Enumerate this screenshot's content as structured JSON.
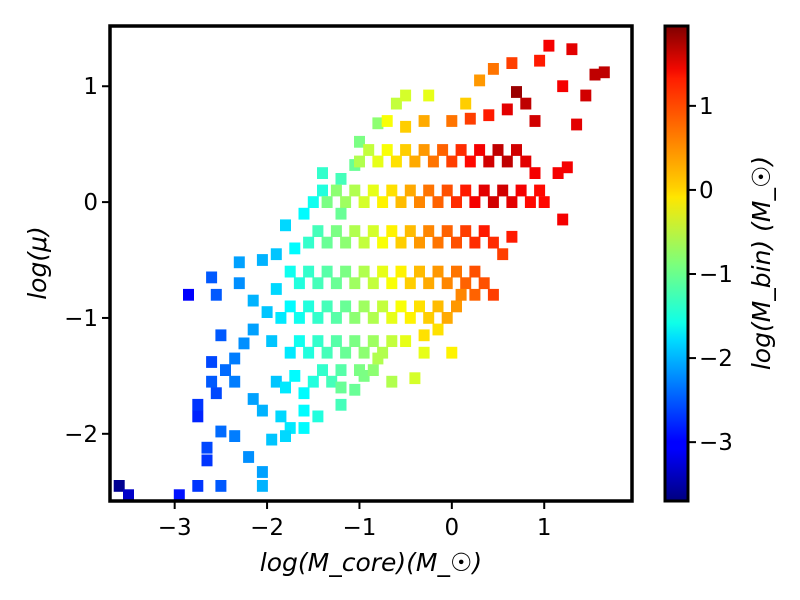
{
  "chart_data": {
    "type": "heatmap",
    "xlabel": "log(M_core)(M_☉)",
    "ylabel": "log(μ)",
    "colorbar_label": "log(M_bin) (M_☉)",
    "xlim": [
      -3.7,
      1.95
    ],
    "ylim": [
      -2.58,
      1.52
    ],
    "clim": [
      -3.7,
      1.95
    ],
    "xticks": [
      -3,
      -2,
      -1,
      0,
      1
    ],
    "yticks": [
      -2,
      -1,
      0,
      1
    ],
    "colorbar_ticks": [
      -3,
      -2,
      -1,
      0,
      1
    ],
    "colormap": "jet",
    "grid": false,
    "bin_width": 0.119,
    "bin_height": 0.102,
    "colorbar_tick_labels": [
      "−3",
      "−2",
      "−1",
      "0",
      "1"
    ],
    "xtick_labels": [
      "−3",
      "−2",
      "−1",
      "0",
      "1"
    ],
    "ytick_labels": [
      "−2",
      "−1",
      "0",
      "1"
    ],
    "bins": [
      [
        -3.6,
        -2.45,
        -3.6
      ],
      [
        -3.5,
        -2.53,
        -3.3
      ],
      [
        -2.95,
        -2.53,
        -2.9
      ],
      [
        -2.75,
        -2.45,
        -2.7
      ],
      [
        -2.5,
        -2.45,
        -2.5
      ],
      [
        -2.05,
        -2.45,
        -2.0
      ],
      [
        -2.05,
        -2.33,
        -2.1
      ],
      [
        -2.2,
        -2.2,
        -2.2
      ],
      [
        -2.65,
        -2.23,
        -2.7
      ],
      [
        -2.65,
        -2.12,
        -2.6
      ],
      [
        -2.5,
        -1.98,
        -2.4
      ],
      [
        -2.35,
        -2.02,
        -2.3
      ],
      [
        -2.75,
        -1.85,
        -2.8
      ],
      [
        -2.75,
        -1.75,
        -2.7
      ],
      [
        -2.55,
        -1.65,
        -2.6
      ],
      [
        -2.6,
        -1.55,
        -2.5
      ],
      [
        -2.45,
        -1.45,
        -2.4
      ],
      [
        -2.35,
        -1.55,
        -2.3
      ],
      [
        -2.35,
        -1.35,
        -2.3
      ],
      [
        -2.6,
        -1.38,
        -2.6
      ],
      [
        -2.5,
        -1.15,
        -2.5
      ],
      [
        -2.25,
        -1.22,
        -2.2
      ],
      [
        -2.15,
        -1.1,
        -2.1
      ],
      [
        -1.95,
        -1.2,
        -1.9
      ],
      [
        -2.15,
        -1.7,
        -2.1
      ],
      [
        -2.05,
        -1.8,
        -2.0
      ],
      [
        -1.85,
        -1.85,
        -1.8
      ],
      [
        -1.75,
        -1.95,
        -1.7
      ],
      [
        -1.95,
        -2.05,
        -1.9
      ],
      [
        -1.8,
        -2.02,
        -1.8
      ],
      [
        -1.6,
        -1.95,
        -1.6
      ],
      [
        -1.45,
        -1.85,
        -1.4
      ],
      [
        -1.2,
        -1.75,
        -1.2
      ],
      [
        -1.05,
        -1.62,
        -1.0
      ],
      [
        -0.95,
        -1.5,
        -0.9
      ],
      [
        -0.85,
        -1.45,
        -0.8
      ],
      [
        -0.65,
        -1.55,
        -0.6
      ],
      [
        -0.4,
        -1.52,
        -0.4
      ],
      [
        -0.3,
        -1.3,
        -0.3
      ],
      [
        0.0,
        -1.3,
        -0.1
      ],
      [
        -2.85,
        -0.8,
        -3.0
      ],
      [
        -2.55,
        -0.8,
        -2.5
      ],
      [
        -2.6,
        -0.65,
        -2.5
      ],
      [
        -2.3,
        -0.7,
        -2.2
      ],
      [
        -2.3,
        -0.52,
        -2.1
      ],
      [
        -2.05,
        -0.5,
        -2.0
      ],
      [
        -1.9,
        -0.45,
        -1.9
      ],
      [
        -1.8,
        -0.2,
        -1.8
      ],
      [
        -1.6,
        -0.1,
        -1.6
      ],
      [
        -1.5,
        0.0,
        -1.5
      ],
      [
        -1.4,
        0.1,
        -1.4
      ],
      [
        -1.2,
        0.2,
        -1.2
      ],
      [
        -1.05,
        0.32,
        -1.0
      ],
      [
        -1.0,
        0.52,
        -0.9
      ],
      [
        -0.8,
        0.68,
        -0.8
      ],
      [
        -0.6,
        0.85,
        -0.5
      ],
      [
        -0.5,
        0.92,
        -0.4
      ],
      [
        -0.25,
        0.92,
        -0.3
      ],
      [
        0.15,
        0.85,
        0.1
      ],
      [
        0.3,
        1.05,
        0.4
      ],
      [
        0.45,
        1.15,
        0.6
      ],
      [
        0.65,
        1.2,
        0.9
      ],
      [
        0.95,
        1.22,
        1.1
      ],
      [
        1.05,
        1.35,
        1.3
      ],
      [
        1.3,
        1.32,
        1.4
      ],
      [
        1.65,
        1.12,
        1.6
      ],
      [
        1.55,
        1.1,
        1.6
      ],
      [
        1.2,
        1.0,
        1.3
      ],
      [
        1.45,
        0.92,
        1.5
      ],
      [
        1.35,
        0.67,
        1.4
      ],
      [
        1.15,
        0.25,
        1.3
      ],
      [
        1.25,
        0.3,
        1.3
      ],
      [
        1.0,
        0.0,
        1.2
      ],
      [
        1.2,
        -0.15,
        1.3
      ],
      [
        -0.15,
        -1.1,
        0.0
      ],
      [
        -1.9,
        -1.55,
        -1.9
      ],
      [
        -1.8,
        -1.6,
        -1.7
      ],
      [
        -1.7,
        -1.5,
        -1.6
      ],
      [
        -1.6,
        -1.65,
        -1.6
      ],
      [
        -1.5,
        -1.55,
        -1.4
      ],
      [
        -1.4,
        -1.45,
        -1.3
      ],
      [
        -1.3,
        -1.55,
        -1.2
      ],
      [
        -1.2,
        -1.45,
        -1.1
      ],
      [
        -1.75,
        -1.3,
        -1.7
      ],
      [
        -1.65,
        -1.2,
        -1.5
      ],
      [
        -1.55,
        -1.3,
        -1.4
      ],
      [
        -1.45,
        -1.2,
        -1.3
      ],
      [
        -1.35,
        -1.3,
        -1.2
      ],
      [
        -1.25,
        -1.2,
        -1.1
      ],
      [
        -1.15,
        -1.3,
        -1.0
      ],
      [
        -1.05,
        -1.2,
        -0.9
      ],
      [
        -0.95,
        -1.3,
        -0.8
      ],
      [
        -0.85,
        -1.2,
        -0.7
      ],
      [
        -0.75,
        -1.3,
        -0.6
      ],
      [
        -0.65,
        -1.2,
        -0.5
      ],
      [
        -1.85,
        -1.0,
        -1.7
      ],
      [
        -1.75,
        -0.9,
        -1.6
      ],
      [
        -1.65,
        -1.0,
        -1.5
      ],
      [
        -1.55,
        -0.9,
        -1.4
      ],
      [
        -1.45,
        -1.0,
        -1.3
      ],
      [
        -1.35,
        -0.9,
        -1.2
      ],
      [
        -1.25,
        -1.0,
        -1.1
      ],
      [
        -1.15,
        -0.9,
        -1.0
      ],
      [
        -1.05,
        -1.0,
        -0.8
      ],
      [
        -0.95,
        -0.9,
        -0.7
      ],
      [
        -0.85,
        -1.0,
        -0.6
      ],
      [
        -0.75,
        -0.9,
        -0.5
      ],
      [
        -0.65,
        -1.0,
        -0.3
      ],
      [
        -0.55,
        -0.9,
        -0.2
      ],
      [
        -0.45,
        -1.0,
        -0.1
      ],
      [
        -0.35,
        -0.9,
        0.0
      ],
      [
        -0.25,
        -1.0,
        0.1
      ],
      [
        -0.15,
        -0.9,
        0.2
      ],
      [
        -0.05,
        -1.0,
        0.3
      ],
      [
        0.05,
        -0.9,
        0.4
      ],
      [
        -1.75,
        -0.6,
        -1.5
      ],
      [
        -1.65,
        -0.7,
        -1.4
      ],
      [
        -1.55,
        -0.6,
        -1.3
      ],
      [
        -1.45,
        -0.7,
        -1.2
      ],
      [
        -1.35,
        -0.6,
        -1.1
      ],
      [
        -1.25,
        -0.7,
        -1.0
      ],
      [
        -1.15,
        -0.6,
        -0.9
      ],
      [
        -1.05,
        -0.7,
        -0.7
      ],
      [
        -0.95,
        -0.6,
        -0.6
      ],
      [
        -0.85,
        -0.7,
        -0.5
      ],
      [
        -0.75,
        -0.6,
        -0.3
      ],
      [
        -0.65,
        -0.7,
        -0.2
      ],
      [
        -0.55,
        -0.6,
        -0.1
      ],
      [
        -0.45,
        -0.7,
        0.1
      ],
      [
        -0.35,
        -0.6,
        0.2
      ],
      [
        -0.25,
        -0.7,
        0.3
      ],
      [
        -0.15,
        -0.6,
        0.4
      ],
      [
        -0.05,
        -0.7,
        0.5
      ],
      [
        0.05,
        -0.6,
        0.6
      ],
      [
        0.15,
        -0.7,
        0.7
      ],
      [
        0.25,
        -0.6,
        0.8
      ],
      [
        0.35,
        -0.7,
        0.8
      ],
      [
        0.45,
        -0.8,
        0.9
      ],
      [
        -1.55,
        -0.35,
        -1.3
      ],
      [
        -1.45,
        -0.25,
        -1.2
      ],
      [
        -1.35,
        -0.35,
        -1.0
      ],
      [
        -1.25,
        -0.25,
        -0.9
      ],
      [
        -1.15,
        -0.35,
        -0.8
      ],
      [
        -1.05,
        -0.25,
        -0.6
      ],
      [
        -0.95,
        -0.35,
        -0.5
      ],
      [
        -0.85,
        -0.25,
        -0.4
      ],
      [
        -0.75,
        -0.35,
        -0.2
      ],
      [
        -0.65,
        -0.25,
        -0.1
      ],
      [
        -0.55,
        -0.35,
        0.1
      ],
      [
        -0.45,
        -0.25,
        0.2
      ],
      [
        -0.35,
        -0.35,
        0.4
      ],
      [
        -0.25,
        -0.25,
        0.5
      ],
      [
        -0.15,
        -0.35,
        0.6
      ],
      [
        -0.05,
        -0.25,
        0.7
      ],
      [
        0.05,
        -0.35,
        0.8
      ],
      [
        0.15,
        -0.25,
        0.9
      ],
      [
        0.25,
        -0.35,
        1.0
      ],
      [
        0.35,
        -0.25,
        1.1
      ],
      [
        0.45,
        -0.35,
        1.0
      ],
      [
        0.55,
        -0.45,
        0.9
      ],
      [
        0.65,
        -0.3,
        1.1
      ],
      [
        -1.35,
        0.0,
        -0.9
      ],
      [
        -1.25,
        0.1,
        -0.8
      ],
      [
        -1.15,
        0.0,
        -0.7
      ],
      [
        -1.05,
        0.1,
        -0.6
      ],
      [
        -0.95,
        0.0,
        -0.4
      ],
      [
        -0.85,
        0.1,
        -0.3
      ],
      [
        -0.75,
        0.0,
        -0.1
      ],
      [
        -0.65,
        0.1,
        0.0
      ],
      [
        -0.55,
        0.0,
        0.2
      ],
      [
        -0.45,
        0.1,
        0.3
      ],
      [
        -0.35,
        0.0,
        0.5
      ],
      [
        -0.25,
        0.1,
        0.6
      ],
      [
        -0.15,
        0.0,
        0.7
      ],
      [
        -0.05,
        0.1,
        0.8
      ],
      [
        0.05,
        0.0,
        1.0
      ],
      [
        0.15,
        0.1,
        1.1
      ],
      [
        0.25,
        0.0,
        1.3
      ],
      [
        0.35,
        0.1,
        1.4
      ],
      [
        0.45,
        0.0,
        1.5
      ],
      [
        0.55,
        0.1,
        1.5
      ],
      [
        0.65,
        0.0,
        1.4
      ],
      [
        0.75,
        0.1,
        1.3
      ],
      [
        0.85,
        0.0,
        1.2
      ],
      [
        0.95,
        0.1,
        1.2
      ],
      [
        -1.0,
        0.35,
        -0.6
      ],
      [
        -0.9,
        0.45,
        -0.5
      ],
      [
        -0.8,
        0.35,
        -0.3
      ],
      [
        -0.7,
        0.45,
        -0.2
      ],
      [
        -0.6,
        0.35,
        0.0
      ],
      [
        -0.5,
        0.45,
        0.1
      ],
      [
        -0.4,
        0.35,
        0.3
      ],
      [
        -0.3,
        0.45,
        0.4
      ],
      [
        -0.2,
        0.35,
        0.6
      ],
      [
        -0.1,
        0.45,
        0.7
      ],
      [
        0.0,
        0.35,
        0.9
      ],
      [
        0.1,
        0.45,
        1.0
      ],
      [
        0.2,
        0.35,
        1.2
      ],
      [
        0.3,
        0.45,
        1.3
      ],
      [
        0.4,
        0.35,
        1.5
      ],
      [
        0.5,
        0.45,
        1.6
      ],
      [
        0.6,
        0.35,
        1.6
      ],
      [
        0.7,
        0.45,
        1.5
      ],
      [
        0.8,
        0.35,
        1.4
      ],
      [
        0.9,
        0.25,
        1.3
      ],
      [
        -0.7,
        0.7,
        -0.2
      ],
      [
        -0.5,
        0.65,
        0.1
      ],
      [
        -0.3,
        0.7,
        0.3
      ],
      [
        0.0,
        0.7,
        0.6
      ],
      [
        0.2,
        0.72,
        0.9
      ],
      [
        0.4,
        0.75,
        1.1
      ],
      [
        0.6,
        0.8,
        1.4
      ],
      [
        0.8,
        0.85,
        1.6
      ],
      [
        0.7,
        0.95,
        1.8
      ],
      [
        0.9,
        0.7,
        1.5
      ],
      [
        -1.2,
        -0.1,
        -1.0
      ],
      [
        -1.4,
        0.25,
        -1.3
      ],
      [
        -1.9,
        -0.75,
        -1.8
      ],
      [
        -2.0,
        -0.95,
        -1.9
      ],
      [
        -2.15,
        -0.85,
        -2.0
      ],
      [
        -1.7,
        -0.4,
        -1.6
      ],
      [
        -0.3,
        -1.15,
        0.0
      ],
      [
        0.1,
        -0.8,
        0.5
      ],
      [
        0.25,
        -0.8,
        0.7
      ],
      [
        -0.5,
        -1.2,
        -0.3
      ],
      [
        -1.2,
        -1.6,
        -1.0
      ],
      [
        -1.0,
        -1.45,
        -0.9
      ],
      [
        -0.8,
        -1.35,
        -0.6
      ],
      [
        -1.6,
        -1.8,
        -1.6
      ]
    ]
  }
}
